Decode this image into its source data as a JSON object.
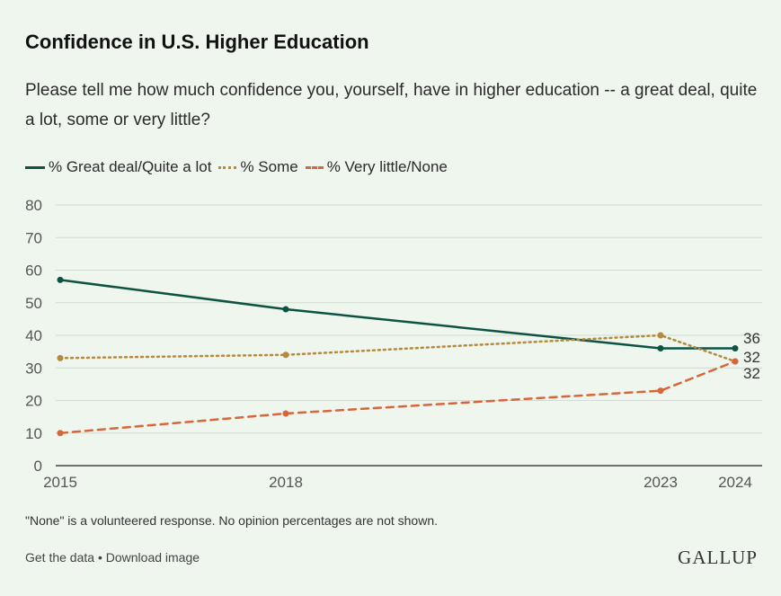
{
  "header": {
    "title": "Confidence in U.S. Higher Education",
    "subtitle": "Please tell me how much confidence you, yourself, have in higher education -- a great deal, quite a lot, some or very little?"
  },
  "legend": {
    "items": [
      {
        "label": "% Great deal/Quite a lot"
      },
      {
        "label": "% Some"
      },
      {
        "label": "% Very little/None"
      }
    ]
  },
  "footnote": "\"None\" is a volunteered response. No opinion percentages are not shown.",
  "footer": {
    "get_data": "Get the data",
    "separator": "•",
    "download": "Download image",
    "brand": "GALLUP"
  },
  "colors": {
    "great_deal": "#0d5243",
    "some": "#b6893c",
    "very_little": "#d9653b",
    "grid": "#cfdccf"
  },
  "chart_data": {
    "type": "line",
    "title": "Confidence in U.S. Higher Education",
    "xlabel": "",
    "ylabel": "",
    "x": [
      2015,
      2018,
      2023,
      2024
    ],
    "ylim": [
      0,
      80
    ],
    "yticks": [
      0,
      10,
      20,
      30,
      40,
      50,
      60,
      70,
      80
    ],
    "grid": true,
    "legend": "top-left",
    "series": [
      {
        "name": "% Great deal/Quite a lot",
        "values": [
          57,
          48,
          36,
          36
        ],
        "style": "solid"
      },
      {
        "name": "% Some",
        "values": [
          33,
          34,
          40,
          32
        ],
        "style": "dotted"
      },
      {
        "name": "% Very little/None",
        "values": [
          10,
          16,
          23,
          32
        ],
        "style": "dashed"
      }
    ],
    "end_labels": [
      "36",
      "32",
      "32"
    ]
  }
}
